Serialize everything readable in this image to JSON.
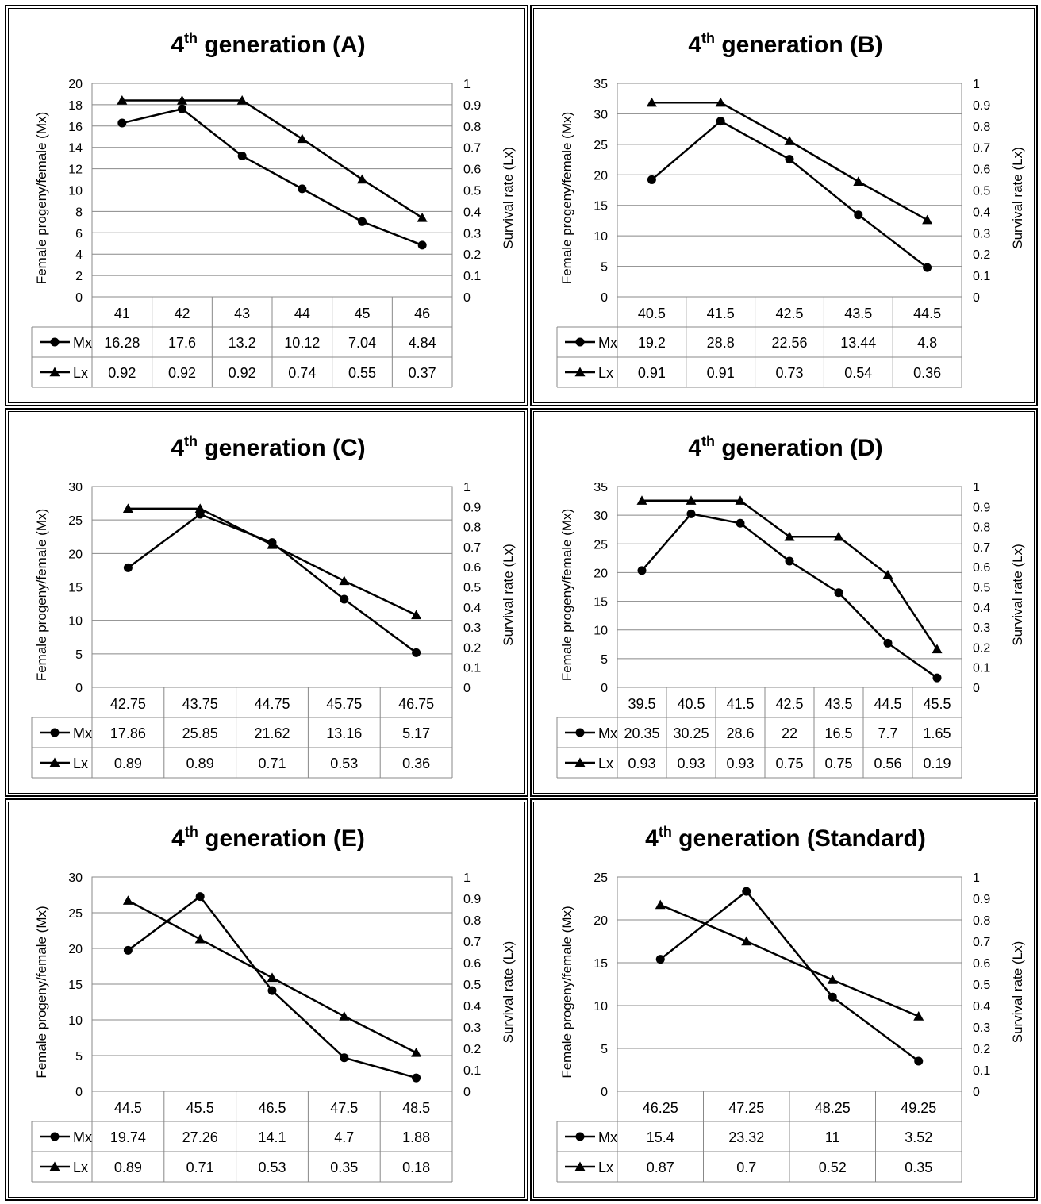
{
  "chart_data": [
    {
      "type": "line",
      "title_main": "4",
      "title_sup": "th",
      "title_rest": " generation (A)",
      "ylabel": "Female progeny/female (Mx)",
      "y2label": "Survival rate (Lx)",
      "ylim": [
        0,
        20
      ],
      "ystep": 2,
      "y2lim": [
        0,
        1
      ],
      "y2step": 0.1,
      "categories": [
        "41",
        "42",
        "43",
        "44",
        "45",
        "46"
      ],
      "series": [
        {
          "name": "Mx",
          "axis": "left",
          "marker": "circle",
          "values": [
            16.28,
            17.6,
            13.2,
            10.12,
            7.04,
            4.84
          ],
          "labels": [
            "16.28",
            "17.6",
            "13.2",
            "10.12",
            "7.04",
            "4.84"
          ]
        },
        {
          "name": "Lx",
          "axis": "right",
          "marker": "triangle",
          "values": [
            0.92,
            0.92,
            0.92,
            0.74,
            0.55,
            0.37
          ],
          "labels": [
            "0.92",
            "0.92",
            "0.92",
            "0.74",
            "0.55",
            "0.37"
          ]
        }
      ]
    },
    {
      "type": "line",
      "title_main": "4",
      "title_sup": "th",
      "title_rest": " generation (B)",
      "ylabel": "Female progeny/female (Mx)",
      "y2label": "Survival rate (Lx)",
      "ylim": [
        0,
        35
      ],
      "ystep": 5,
      "y2lim": [
        0,
        1
      ],
      "y2step": 0.1,
      "categories": [
        "40.5",
        "41.5",
        "42.5",
        "43.5",
        "44.5"
      ],
      "series": [
        {
          "name": "Mx",
          "axis": "left",
          "marker": "circle",
          "values": [
            19.2,
            28.8,
            22.56,
            13.44,
            4.8
          ],
          "labels": [
            "19.2",
            "28.8",
            "22.56",
            "13.44",
            "4.8"
          ]
        },
        {
          "name": "Lx",
          "axis": "right",
          "marker": "triangle",
          "values": [
            0.91,
            0.91,
            0.73,
            0.54,
            0.36
          ],
          "labels": [
            "0.91",
            "0.91",
            "0.73",
            "0.54",
            "0.36"
          ]
        }
      ]
    },
    {
      "type": "line",
      "title_main": "4",
      "title_sup": "th",
      "title_rest": " generation (C)",
      "ylabel": "Female progeny/female (Mx)",
      "y2label": "Survival rate (Lx)",
      "ylim": [
        0,
        30
      ],
      "ystep": 5,
      "y2lim": [
        0,
        1
      ],
      "y2step": 0.1,
      "categories": [
        "42.75",
        "43.75",
        "44.75",
        "45.75",
        "46.75"
      ],
      "series": [
        {
          "name": "Mx",
          "axis": "left",
          "marker": "circle",
          "values": [
            17.86,
            25.85,
            21.62,
            13.16,
            5.17
          ],
          "labels": [
            "17.86",
            "25.85",
            "21.62",
            "13.16",
            "5.17"
          ]
        },
        {
          "name": "Lx",
          "axis": "right",
          "marker": "triangle",
          "values": [
            0.89,
            0.89,
            0.71,
            0.53,
            0.36
          ],
          "labels": [
            "0.89",
            "0.89",
            "0.71",
            "0.53",
            "0.36"
          ]
        }
      ]
    },
    {
      "type": "line",
      "title_main": "4",
      "title_sup": "th",
      "title_rest": " generation (D)",
      "ylabel": "Female progeny/female (Mx)",
      "y2label": "Survival rate (Lx)",
      "ylim": [
        0,
        35
      ],
      "ystep": 5,
      "y2lim": [
        0,
        1
      ],
      "y2step": 0.1,
      "categories": [
        "39.5",
        "40.5",
        "41.5",
        "42.5",
        "43.5",
        "44.5",
        "45.5"
      ],
      "series": [
        {
          "name": "Mx",
          "axis": "left",
          "marker": "circle",
          "values": [
            20.35,
            30.25,
            28.6,
            22,
            16.5,
            7.7,
            1.65
          ],
          "labels": [
            "20.35",
            "30.25",
            "28.6",
            "22",
            "16.5",
            "7.7",
            "1.65"
          ]
        },
        {
          "name": "Lx",
          "axis": "right",
          "marker": "triangle",
          "values": [
            0.93,
            0.93,
            0.93,
            0.75,
            0.75,
            0.56,
            0.19
          ],
          "labels": [
            "0.93",
            "0.93",
            "0.93",
            "0.75",
            "0.75",
            "0.56",
            "0.19"
          ]
        }
      ]
    },
    {
      "type": "line",
      "title_main": "4",
      "title_sup": "th",
      "title_rest": " generation (E)",
      "ylabel": "Female progeny/female (Mx)",
      "y2label": "Survival rate (Lx)",
      "ylim": [
        0,
        30
      ],
      "ystep": 5,
      "y2lim": [
        0,
        1
      ],
      "y2step": 0.1,
      "categories": [
        "44.5",
        "45.5",
        "46.5",
        "47.5",
        "48.5"
      ],
      "series": [
        {
          "name": "Mx",
          "axis": "left",
          "marker": "circle",
          "values": [
            19.74,
            27.26,
            14.1,
            4.7,
            1.88
          ],
          "labels": [
            "19.74",
            "27.26",
            "14.1",
            "4.7",
            "1.88"
          ]
        },
        {
          "name": "Lx",
          "axis": "right",
          "marker": "triangle",
          "values": [
            0.89,
            0.71,
            0.53,
            0.35,
            0.18
          ],
          "labels": [
            "0.89",
            "0.71",
            "0.53",
            "0.35",
            "0.18"
          ]
        }
      ]
    },
    {
      "type": "line",
      "title_main": "4",
      "title_sup": "th",
      "title_rest": " generation (Standard)",
      "ylabel": "Female progeny/female (Mx)",
      "y2label": "Survival rate (Lx)",
      "ylim": [
        0,
        25
      ],
      "ystep": 5,
      "y2lim": [
        0,
        1
      ],
      "y2step": 0.1,
      "categories": [
        "46.25",
        "47.25",
        "48.25",
        "49.25"
      ],
      "series": [
        {
          "name": "Mx",
          "axis": "left",
          "marker": "circle",
          "values": [
            15.4,
            23.32,
            11,
            3.52
          ],
          "labels": [
            "15.4",
            "23.32",
            "11",
            "3.52"
          ]
        },
        {
          "name": "Lx",
          "axis": "right",
          "marker": "triangle",
          "values": [
            0.87,
            0.7,
            0.52,
            0.35
          ],
          "labels": [
            "0.87",
            "0.7",
            "0.52",
            "0.35"
          ]
        }
      ]
    }
  ]
}
